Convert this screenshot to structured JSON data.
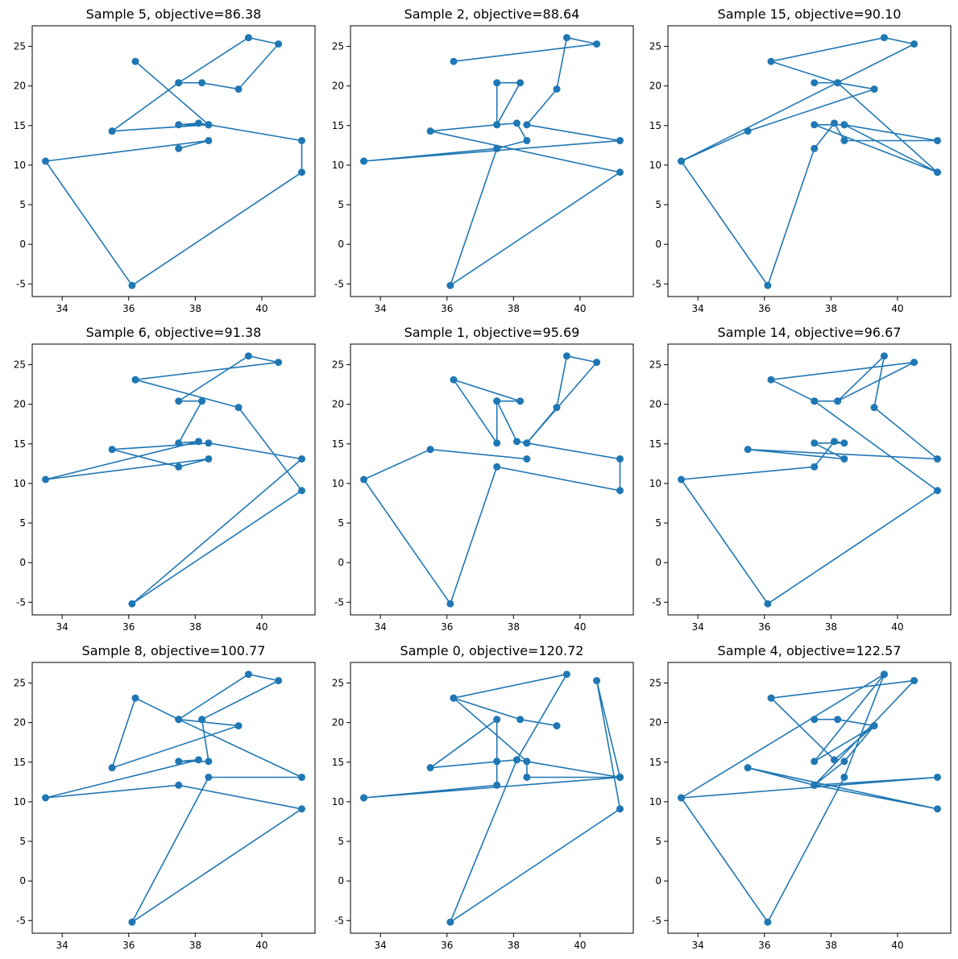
{
  "figure": {
    "line_color": "#1f77b4",
    "marker_color": "#1f77b4"
  },
  "chart_data": [
    {
      "type": "line",
      "title": "Sample 5, objective=86.38",
      "xlim": [
        33.1,
        41.6
      ],
      "ylim": [
        -6.6,
        27.6
      ],
      "xticks": [
        34,
        36,
        38,
        40
      ],
      "yticks": [
        -5,
        0,
        5,
        10,
        15,
        20,
        25
      ],
      "points": [
        [
          37.5,
          20.4
        ],
        [
          38.2,
          20.4
        ],
        [
          39.3,
          19.6
        ],
        [
          40.5,
          25.3
        ],
        [
          39.6,
          26.1
        ],
        [
          37.5,
          20.4
        ],
        [
          35.5,
          14.3
        ],
        [
          38.4,
          15.1
        ],
        [
          38.1,
          15.3
        ],
        [
          37.5,
          15.1
        ],
        [
          38.4,
          15.1
        ],
        [
          36.2,
          23.1
        ],
        [
          38.4,
          15.1
        ],
        [
          41.2,
          13.1
        ],
        [
          41.2,
          9.1
        ],
        [
          36.1,
          -5.2
        ],
        [
          33.5,
          10.5
        ],
        [
          38.4,
          13.1
        ],
        [
          37.5,
          12.1
        ]
      ]
    },
    {
      "type": "line",
      "title": "Sample 2, objective=88.64",
      "xlim": [
        33.1,
        41.6
      ],
      "ylim": [
        -6.6,
        27.6
      ],
      "xticks": [
        34,
        36,
        38,
        40
      ],
      "yticks": [
        -5,
        0,
        5,
        10,
        15,
        20,
        25
      ],
      "points": [
        [
          36.2,
          23.1
        ],
        [
          40.5,
          25.3
        ],
        [
          39.6,
          26.1
        ],
        [
          39.3,
          19.6
        ],
        [
          38.4,
          15.1
        ],
        [
          41.2,
          13.1
        ],
        [
          33.5,
          10.5
        ],
        [
          37.5,
          12.1
        ],
        [
          38.4,
          13.1
        ],
        [
          38.1,
          15.3
        ],
        [
          37.5,
          15.1
        ],
        [
          37.5,
          20.4
        ],
        [
          38.2,
          20.4
        ],
        [
          37.5,
          15.1
        ],
        [
          35.5,
          14.3
        ],
        [
          41.2,
          9.1
        ],
        [
          36.1,
          -5.2
        ],
        [
          37.5,
          12.1
        ],
        [
          33.5,
          10.5
        ]
      ]
    },
    {
      "type": "line",
      "title": "Sample 15, objective=90.10",
      "xlim": [
        33.1,
        41.6
      ],
      "ylim": [
        -6.6,
        27.6
      ],
      "xticks": [
        34,
        36,
        38,
        40
      ],
      "yticks": [
        -5,
        0,
        5,
        10,
        15,
        20,
        25
      ],
      "points": [
        [
          37.5,
          20.4
        ],
        [
          38.2,
          20.4
        ],
        [
          39.3,
          19.6
        ],
        [
          35.5,
          14.3
        ],
        [
          33.5,
          10.5
        ],
        [
          36.1,
          -5.2
        ],
        [
          37.5,
          12.1
        ],
        [
          38.1,
          15.3
        ],
        [
          38.4,
          13.1
        ],
        [
          41.2,
          13.1
        ],
        [
          38.4,
          15.1
        ],
        [
          41.2,
          9.1
        ],
        [
          37.5,
          15.1
        ],
        [
          38.4,
          15.1
        ],
        [
          41.2,
          9.1
        ],
        [
          38.2,
          20.4
        ],
        [
          36.2,
          23.1
        ],
        [
          39.6,
          26.1
        ],
        [
          40.5,
          25.3
        ],
        [
          33.5,
          10.5
        ]
      ]
    },
    {
      "type": "line",
      "title": "Sample 6, objective=91.38",
      "xlim": [
        33.1,
        41.6
      ],
      "ylim": [
        -6.6,
        27.6
      ],
      "xticks": [
        34,
        36,
        38,
        40
      ],
      "yticks": [
        -5,
        0,
        5,
        10,
        15,
        20,
        25
      ],
      "points": [
        [
          36.2,
          23.1
        ],
        [
          40.5,
          25.3
        ],
        [
          39.6,
          26.1
        ],
        [
          37.5,
          20.4
        ],
        [
          38.2,
          20.4
        ],
        [
          37.5,
          15.1
        ],
        [
          38.1,
          15.3
        ],
        [
          33.5,
          10.5
        ],
        [
          38.4,
          13.1
        ],
        [
          37.5,
          12.1
        ],
        [
          35.5,
          14.3
        ],
        [
          38.4,
          15.1
        ],
        [
          41.2,
          13.1
        ],
        [
          36.1,
          -5.2
        ],
        [
          41.2,
          9.1
        ],
        [
          39.3,
          19.6
        ],
        [
          36.2,
          23.1
        ]
      ]
    },
    {
      "type": "line",
      "title": "Sample 1, objective=95.69",
      "xlim": [
        33.1,
        41.6
      ],
      "ylim": [
        -6.6,
        27.6
      ],
      "xticks": [
        34,
        36,
        38,
        40
      ],
      "yticks": [
        -5,
        0,
        5,
        10,
        15,
        20,
        25
      ],
      "points": [
        [
          37.5,
          20.4
        ],
        [
          38.2,
          20.4
        ],
        [
          36.2,
          23.1
        ],
        [
          37.5,
          15.1
        ],
        [
          37.5,
          20.4
        ],
        [
          38.1,
          15.3
        ],
        [
          38.4,
          15.1
        ],
        [
          39.3,
          19.6
        ],
        [
          39.6,
          26.1
        ],
        [
          40.5,
          25.3
        ],
        [
          38.4,
          15.1
        ],
        [
          41.2,
          13.1
        ],
        [
          41.2,
          9.1
        ],
        [
          37.5,
          12.1
        ],
        [
          36.1,
          -5.2
        ],
        [
          33.5,
          10.5
        ],
        [
          35.5,
          14.3
        ],
        [
          38.4,
          13.1
        ]
      ]
    },
    {
      "type": "line",
      "title": "Sample 14, objective=96.67",
      "xlim": [
        33.1,
        41.6
      ],
      "ylim": [
        -6.6,
        27.6
      ],
      "xticks": [
        34,
        36,
        38,
        40
      ],
      "yticks": [
        -5,
        0,
        5,
        10,
        15,
        20,
        25
      ],
      "points": [
        [
          37.5,
          20.4
        ],
        [
          38.2,
          20.4
        ],
        [
          39.6,
          26.1
        ],
        [
          39.3,
          19.6
        ],
        [
          41.2,
          13.1
        ],
        [
          35.5,
          14.3
        ],
        [
          38.4,
          13.1
        ],
        [
          37.5,
          15.1
        ],
        [
          38.4,
          15.1
        ],
        [
          38.1,
          15.3
        ],
        [
          37.5,
          12.1
        ],
        [
          33.5,
          10.5
        ],
        [
          36.1,
          -5.2
        ],
        [
          41.2,
          9.1
        ],
        [
          37.5,
          20.4
        ],
        [
          36.2,
          23.1
        ],
        [
          40.5,
          25.3
        ],
        [
          38.2,
          20.4
        ]
      ]
    },
    {
      "type": "line",
      "title": "Sample 8, objective=100.77",
      "xlim": [
        33.1,
        41.6
      ],
      "ylim": [
        -6.6,
        27.6
      ],
      "xticks": [
        34,
        36,
        38,
        40
      ],
      "yticks": [
        -5,
        0,
        5,
        10,
        15,
        20,
        25
      ],
      "points": [
        [
          37.5,
          20.4
        ],
        [
          36.2,
          23.1
        ],
        [
          35.5,
          14.3
        ],
        [
          39.3,
          19.6
        ],
        [
          37.5,
          20.4
        ],
        [
          39.6,
          26.1
        ],
        [
          40.5,
          25.3
        ],
        [
          38.2,
          20.4
        ],
        [
          38.4,
          15.1
        ],
        [
          37.5,
          15.1
        ],
        [
          38.1,
          15.3
        ],
        [
          33.5,
          10.5
        ],
        [
          37.5,
          12.1
        ],
        [
          41.2,
          9.1
        ],
        [
          36.1,
          -5.2
        ],
        [
          38.4,
          13.1
        ],
        [
          41.2,
          13.1
        ],
        [
          37.5,
          20.4
        ]
      ]
    },
    {
      "type": "line",
      "title": "Sample 0, objective=120.72",
      "xlim": [
        33.1,
        41.6
      ],
      "ylim": [
        -6.6,
        27.6
      ],
      "xticks": [
        34,
        36,
        38,
        40
      ],
      "yticks": [
        -5,
        0,
        5,
        10,
        15,
        20,
        25
      ],
      "points": [
        [
          36.2,
          23.1
        ],
        [
          38.4,
          15.1
        ],
        [
          38.4,
          13.1
        ],
        [
          41.2,
          13.1
        ],
        [
          33.5,
          10.5
        ],
        [
          37.5,
          12.1
        ],
        [
          37.5,
          15.1
        ],
        [
          37.5,
          20.4
        ],
        [
          35.5,
          14.3
        ],
        [
          38.1,
          15.3
        ],
        [
          36.1,
          -5.2
        ],
        [
          41.2,
          9.1
        ],
        [
          40.5,
          25.3
        ],
        [
          41.2,
          13.1
        ],
        [
          33.5,
          10.5
        ],
        [
          41.2,
          13.1
        ],
        [
          38.1,
          15.3
        ],
        [
          39.6,
          26.1
        ],
        [
          36.2,
          23.1
        ],
        [
          38.2,
          20.4
        ],
        [
          39.3,
          19.6
        ]
      ]
    },
    {
      "type": "line",
      "title": "Sample 4, objective=122.57",
      "xlim": [
        33.1,
        41.6
      ],
      "ylim": [
        -6.6,
        27.6
      ],
      "xticks": [
        34,
        36,
        38,
        40
      ],
      "yticks": [
        -5,
        0,
        5,
        10,
        15,
        20,
        25
      ],
      "points": [
        [
          37.5,
          20.4
        ],
        [
          38.2,
          20.4
        ],
        [
          39.3,
          19.6
        ],
        [
          38.1,
          15.3
        ],
        [
          36.2,
          23.1
        ],
        [
          40.5,
          25.3
        ],
        [
          37.5,
          12.1
        ],
        [
          38.4,
          15.1
        ],
        [
          39.3,
          19.6
        ],
        [
          37.5,
          15.1
        ],
        [
          39.6,
          26.1
        ],
        [
          38.4,
          13.1
        ],
        [
          36.1,
          -5.2
        ],
        [
          33.5,
          10.5
        ],
        [
          39.6,
          26.1
        ],
        [
          33.5,
          10.5
        ],
        [
          41.2,
          13.1
        ],
        [
          37.5,
          12.1
        ],
        [
          41.2,
          9.1
        ],
        [
          35.5,
          14.3
        ],
        [
          37.5,
          12.1
        ]
      ]
    }
  ]
}
